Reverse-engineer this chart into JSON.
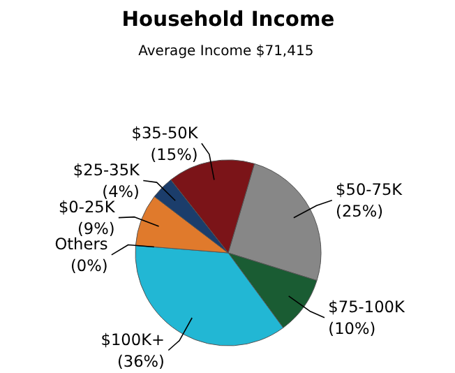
{
  "chart_data": {
    "type": "pie",
    "title": "Household Income",
    "subtitle": "Average Income  $71,415",
    "categories": [
      "$50-75K",
      "$75-100K",
      "$100K+",
      "Others",
      "$0-25K",
      "$25-35K",
      "$35-50K"
    ],
    "values": [
      25,
      10,
      36,
      0,
      9,
      4,
      15
    ],
    "value_labels": [
      "(25%)",
      "(10%)",
      "(36%)",
      "(0%)",
      "(9%)",
      "(4%)",
      "(15%)"
    ],
    "colors": [
      "#878787",
      "#1a5c33",
      "#22b7d4",
      "#d0d0d0",
      "#e07a2c",
      "#1b3d6b",
      "#7b1418"
    ]
  }
}
